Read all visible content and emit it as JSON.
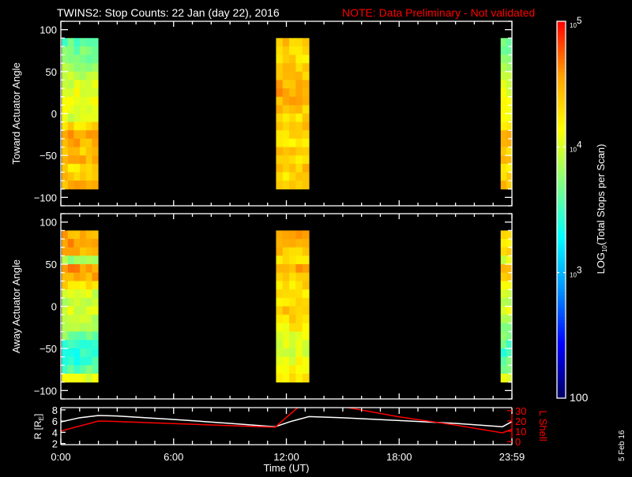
{
  "title": {
    "main": "TWINS2: Stop Counts: 22 Jan (day  22), 2016",
    "note": "NOTE: Data Preliminary - Not validated",
    "note_color": "#ff0000"
  },
  "date_stamp": "5 Feb 16",
  "chart_data": [
    {
      "type": "heatmap",
      "ylabel": "Toward Actuator Angle",
      "ylim": [
        -110,
        110
      ],
      "yticks": [
        100,
        50,
        0,
        -50,
        -100
      ],
      "angle_bins_deg": [
        90,
        80,
        70,
        60,
        50,
        40,
        30,
        20,
        10,
        0,
        -10,
        -20,
        -30,
        -40,
        -50,
        -60,
        -70,
        -80
      ],
      "blocks": [
        {
          "t_start_h": 0.05,
          "t_end_h": 1.98,
          "log10_counts": [
            3.6,
            3.65,
            3.7,
            3.8,
            3.9,
            4.0,
            4.1,
            4.15,
            4.1,
            4.0,
            4.3,
            4.6,
            4.5,
            4.4,
            4.5,
            4.3,
            4.4,
            4.5
          ]
        },
        {
          "t_start_h": 11.45,
          "t_end_h": 13.2,
          "log10_counts": [
            4.4,
            4.35,
            4.3,
            4.4,
            4.4,
            4.5,
            4.55,
            4.5,
            4.4,
            4.3,
            4.4,
            4.3,
            4.2,
            4.4,
            4.3,
            4.4,
            4.3,
            4.4
          ]
        },
        {
          "t_start_h": 23.4,
          "t_end_h": 24.0,
          "log10_counts": [
            3.7,
            3.7,
            3.75,
            3.8,
            3.9,
            4.0,
            4.1,
            4.2,
            4.2,
            4.1,
            4.3,
            4.5,
            4.4,
            4.3,
            4.4,
            4.2,
            4.3,
            4.4
          ]
        }
      ]
    },
    {
      "type": "heatmap",
      "ylabel": "Away Actuator Angle",
      "ylim": [
        -110,
        110
      ],
      "yticks": [
        100,
        50,
        0,
        -50,
        -100
      ],
      "angle_bins_deg": [
        90,
        80,
        70,
        60,
        50,
        40,
        30,
        20,
        10,
        0,
        -10,
        -20,
        -30,
        -40,
        -50,
        -60,
        -70,
        -80
      ],
      "blocks": [
        {
          "t_start_h": 0.05,
          "t_end_h": 1.98,
          "log10_counts": [
            4.5,
            4.6,
            4.5,
            3.8,
            4.6,
            4.5,
            4.3,
            4.0,
            3.9,
            4.0,
            3.9,
            3.8,
            3.7,
            3.5,
            3.4,
            3.45,
            3.6,
            4.0
          ]
        },
        {
          "t_start_h": 11.45,
          "t_end_h": 13.2,
          "log10_counts": [
            4.5,
            4.4,
            4.4,
            4.3,
            4.5,
            4.4,
            4.3,
            4.2,
            4.3,
            4.4,
            4.3,
            4.2,
            4.1,
            4.0,
            4.0,
            4.1,
            4.2,
            4.2
          ]
        },
        {
          "t_start_h": 23.4,
          "t_end_h": 24.0,
          "log10_counts": [
            4.4,
            4.3,
            4.4,
            4.0,
            4.5,
            4.4,
            4.2,
            4.0,
            3.9,
            4.0,
            3.9,
            3.8,
            3.7,
            3.6,
            3.5,
            3.6,
            3.7,
            4.0
          ]
        }
      ]
    },
    {
      "type": "line",
      "xlabel": "Time (UT)",
      "xticks": [
        "0:00",
        "6:00",
        "12:00",
        "18:00",
        "23:59"
      ],
      "xtick_hours": [
        0,
        6,
        12,
        18,
        24
      ],
      "ylabel": "R [R_E]",
      "ylabel_main": "R [R",
      "ylabel_sub": "E",
      "ylabel_end": "]",
      "ylim": [
        1.8,
        8.4
      ],
      "yticks": [
        "8",
        "6",
        "4",
        "2"
      ],
      "y2label": "L Shell",
      "y2lim": [
        -3,
        33
      ],
      "y2ticks": [
        "30",
        "20",
        "10",
        "0"
      ],
      "series": [
        {
          "axis": "left",
          "color": "#ffffff",
          "x": [
            0,
            1,
            2,
            3,
            6,
            9,
            11.4,
            12.2,
            13.2,
            15,
            18,
            21,
            23.5,
            24
          ],
          "y": [
            5.85,
            6.6,
            7.0,
            6.9,
            6.3,
            5.6,
            5.0,
            5.9,
            6.8,
            6.6,
            6.1,
            5.6,
            5.0,
            5.9
          ]
        },
        {
          "axis": "right",
          "color": "#ff0000",
          "x": [
            0,
            2,
            3,
            6,
            9,
            11.4,
            12.6,
            null,
            15.3,
            18,
            21,
            23.5,
            24
          ],
          "y": [
            10.2,
            20,
            19.5,
            17.5,
            15.5,
            14,
            33,
            null,
            33,
            24,
            16,
            8.5,
            12
          ]
        }
      ]
    }
  ],
  "colorbar": {
    "label_main": "LOG",
    "label_sub": "10",
    "label_rest": "(Total Stops per Scan)",
    "range_log10": [
      2,
      5
    ],
    "ticks": [
      {
        "log": 5,
        "base": "10",
        "exp": "5"
      },
      {
        "log": 4,
        "base": "10",
        "exp": "4"
      },
      {
        "log": 3,
        "base": "10",
        "exp": "3"
      },
      {
        "log": 2,
        "base": "100",
        "exp": ""
      }
    ],
    "colormap": [
      "#000060",
      "#0000ff",
      "#0090ff",
      "#00ffff",
      "#80ff80",
      "#ffff00",
      "#ffa000",
      "#ff0000"
    ]
  }
}
